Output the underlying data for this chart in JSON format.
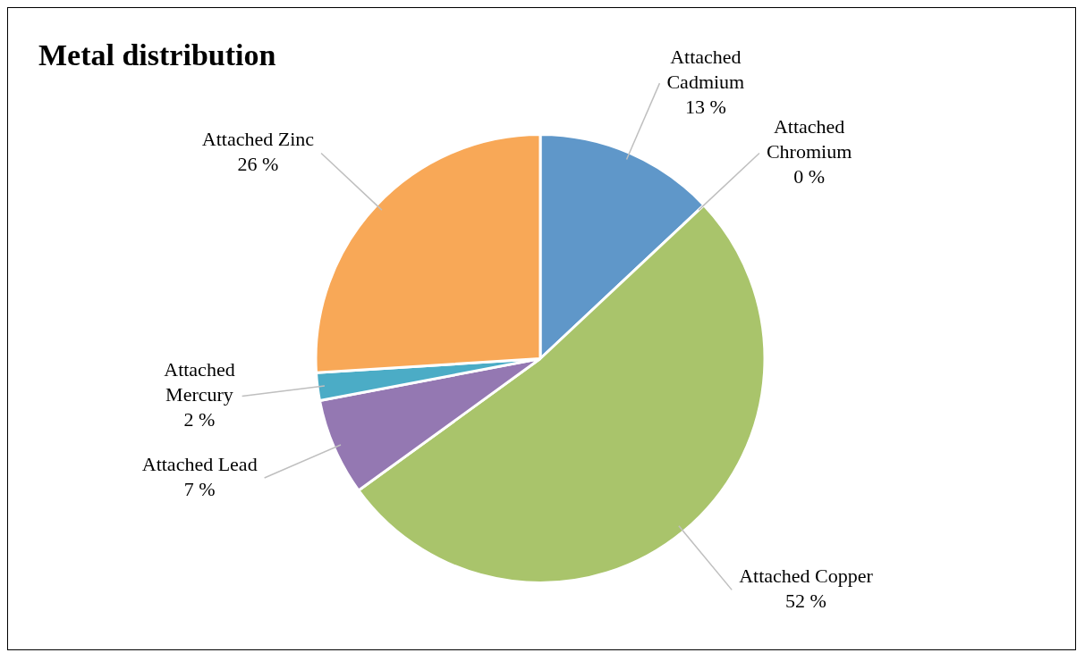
{
  "chart_data": {
    "type": "pie",
    "title": "Metal distribution",
    "categories": [
      "Attached Cadmium",
      "Attached Chromium",
      "Attached Copper",
      "Attached Lead",
      "Attached Mercury",
      "Attached Zinc"
    ],
    "values": [
      13,
      0,
      52,
      7,
      2,
      26
    ],
    "colors": [
      "#5f97c9",
      "#c0504d",
      "#a9c46b",
      "#9478b2",
      "#4bacc6",
      "#f8a857"
    ],
    "value_labels": [
      "13 %",
      "0 %",
      "52 %",
      "7 %",
      "2 %",
      "26 %"
    ],
    "legend": false
  }
}
